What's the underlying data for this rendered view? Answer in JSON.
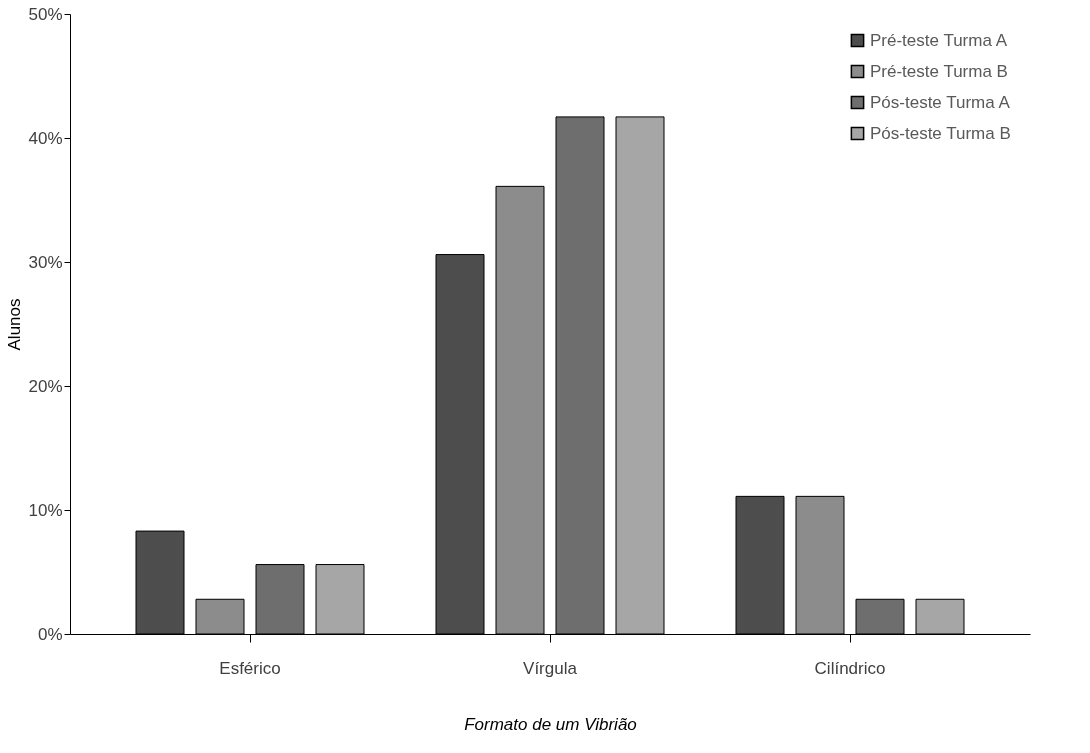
{
  "chart_data": {
    "type": "bar",
    "xlabel": "Formato de um Vibrião",
    "ylabel": "Alunos",
    "categories": [
      "Esférico",
      "Vírgula",
      "Cilíndrico"
    ],
    "series": [
      {
        "name": "Pré-teste Turma A",
        "color": "#4d4d4d",
        "values": [
          8.3,
          30.6,
          11.1
        ]
      },
      {
        "name": "Pré-teste Turma B",
        "color": "#8c8c8c",
        "values": [
          2.8,
          36.1,
          11.1
        ]
      },
      {
        "name": "Pós-teste Turma A",
        "color": "#6e6e6e",
        "values": [
          5.6,
          41.7,
          2.8
        ]
      },
      {
        "name": "Pós-teste Turma B",
        "color": "#a6a6a6",
        "values": [
          5.6,
          41.7,
          2.8
        ]
      }
    ],
    "ylim": [
      0,
      50
    ],
    "yticks": [
      {
        "value": 0,
        "label": "0%"
      },
      {
        "value": 10,
        "label": "10%"
      },
      {
        "value": 20,
        "label": "20%"
      },
      {
        "value": 30,
        "label": "30%"
      },
      {
        "value": 40,
        "label": "40%"
      },
      {
        "value": 50,
        "label": "50%"
      }
    ],
    "grid": false,
    "legend": "top right"
  }
}
